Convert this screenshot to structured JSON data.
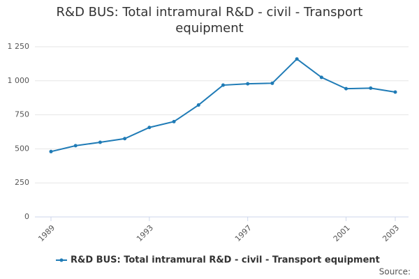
{
  "chart_data": {
    "type": "line",
    "title": "R&D BUS: Total intramural R&D - civil - Transport equipment",
    "x": [
      1989,
      1990,
      1991,
      1992,
      1993,
      1994,
      1995,
      1996,
      1997,
      1998,
      1999,
      2000,
      2001,
      2002,
      2003
    ],
    "series": [
      {
        "name": "R&D BUS: Total intramural R&D - civil - Transport equipment",
        "color": "#1f7bb6",
        "values": [
          480,
          523,
          548,
          575,
          657,
          700,
          822,
          968,
          978,
          982,
          1160,
          1025,
          942,
          946,
          917
        ]
      }
    ],
    "xlim": [
      1989,
      2003
    ],
    "xticks": [
      1989,
      1993,
      1997,
      2001,
      2003
    ],
    "ylim": [
      0,
      1250
    ],
    "yticks": [
      0,
      250,
      500,
      750,
      {
        "value": 1000,
        "label": "1 000"
      },
      {
        "value": 1250,
        "label": "1 250"
      }
    ],
    "grid": true,
    "source": "Source:"
  }
}
